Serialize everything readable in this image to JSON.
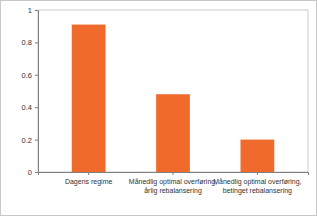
{
  "chart_data": {
    "type": "bar",
    "categories": [
      "Dagens regime",
      "Månedlig optimal overføring, årlig rebalansering",
      "Månedlig optimal overføring, betinget rebalansering"
    ],
    "values": [
      0.91,
      0.48,
      0.2
    ],
    "color": "#f06b2b",
    "ylim": [
      0,
      1
    ],
    "yticks": [
      0,
      0.2,
      0.4,
      0.6,
      0.8,
      1
    ],
    "grid": false
  }
}
